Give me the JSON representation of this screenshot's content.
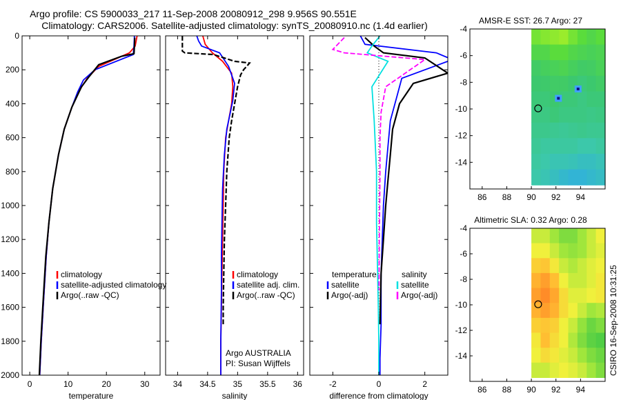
{
  "header": {
    "line1": "Argo profile: CS 5900033_217 11-Sep-2008 20080912_298 9.956S 90.551E",
    "line2": "Climatology: CARS2006. Satellite-adjusted climatology: synTS_20080910.nc (1.4d earlier)"
  },
  "side_label": "CSIRO 16-Sep-2008 10:31:25",
  "colors": {
    "red": "#ff0000",
    "blue": "#0000ff",
    "black": "#000000",
    "cyan": "#00e0e0",
    "magenta": "#ff00ff"
  },
  "chart_data": [
    {
      "id": "temperature",
      "type": "line",
      "xlabel": "temperature",
      "ylabel": "",
      "xlim": [
        -2,
        34
      ],
      "ylim": [
        2000,
        0
      ],
      "xticks": [
        0,
        10,
        20,
        30
      ],
      "yticks": [
        0,
        200,
        400,
        600,
        800,
        1000,
        1200,
        1400,
        1600,
        1800,
        2000
      ],
      "legend": [
        "climatology",
        "satellite-adjusted climatology",
        "Argo(..raw -QC)"
      ],
      "series": [
        {
          "name": "climatology",
          "color": "red",
          "x": [
            28,
            27.5,
            26,
            23,
            18,
            15,
            13,
            11,
            9,
            7.5,
            6,
            5,
            4.3,
            3.5,
            3,
            2.6
          ],
          "y": [
            0,
            60,
            100,
            130,
            180,
            250,
            320,
            420,
            550,
            700,
            900,
            1100,
            1300,
            1600,
            1800,
            2000
          ]
        },
        {
          "name": "satellite-adjusted climatology",
          "color": "blue",
          "x": [
            27.3,
            27.2,
            27,
            17,
            14,
            12.5,
            11,
            9,
            7.5,
            6,
            5,
            4.3,
            3.5,
            3,
            2.6
          ],
          "y": [
            0,
            60,
            110,
            200,
            260,
            330,
            420,
            550,
            700,
            900,
            1100,
            1300,
            1600,
            1800,
            2000
          ]
        },
        {
          "name": "Argo(..raw -QC)",
          "color": "black",
          "x": [
            27.4,
            27.3,
            27.2,
            24,
            18,
            15.5,
            13.5,
            11,
            9,
            7.5,
            6,
            5,
            4.2,
            3.4,
            2.9,
            2.5
          ],
          "y": [
            10,
            60,
            105,
            120,
            170,
            240,
            300,
            420,
            550,
            700,
            900,
            1100,
            1300,
            1600,
            1800,
            2000
          ]
        }
      ]
    },
    {
      "id": "salinity",
      "type": "line",
      "xlabel": "salinity",
      "ylabel": "",
      "xlim": [
        33.8,
        36.1
      ],
      "ylim": [
        2000,
        0
      ],
      "xticks": [
        34,
        34.5,
        35,
        35.5,
        36
      ],
      "legend": [
        "climatology",
        "satellite adj. clim.",
        "Argo(..raw -QC)"
      ],
      "annotation": [
        "Argo AUSTRALIA",
        "PI: Susan Wijffels"
      ],
      "series": [
        {
          "name": "climatology",
          "color": "red",
          "x": [
            34.42,
            34.46,
            34.58,
            34.75,
            34.9,
            34.92,
            34.9,
            34.85,
            34.8,
            34.77,
            34.76,
            34.75,
            34.74,
            34.73,
            34.72,
            34.72
          ],
          "y": [
            0,
            50,
            100,
            150,
            220,
            300,
            400,
            500,
            600,
            800,
            1000,
            1200,
            1400,
            1600,
            1800,
            2000
          ]
        },
        {
          "name": "satellite adj. clim.",
          "color": "blue",
          "x": [
            34.32,
            34.35,
            34.4,
            34.55,
            34.7,
            34.85,
            34.95,
            34.92,
            34.88,
            34.82,
            34.78,
            34.75,
            34.74,
            34.73,
            34.73,
            34.72,
            34.72
          ],
          "y": [
            0,
            30,
            60,
            80,
            100,
            180,
            280,
            380,
            450,
            550,
            700,
            900,
            1100,
            1300,
            1500,
            1800,
            2000
          ]
        },
        {
          "name": "Argo(..raw -QC)",
          "color": "black",
          "x": [
            34.08,
            34.08,
            34.12,
            34.6,
            34.95,
            35.2,
            35.1,
            35.05,
            35.0,
            34.95,
            34.9,
            34.86,
            34.82,
            34.8,
            34.78,
            34.77,
            34.76,
            34.76
          ],
          "y": [
            0,
            90,
            100,
            110,
            150,
            160,
            200,
            230,
            300,
            400,
            500,
            600,
            800,
            1000,
            1200,
            1400,
            1600,
            1700
          ]
        }
      ]
    },
    {
      "id": "difference",
      "type": "line",
      "xlabel": "difference from climatology",
      "ylabel": "",
      "xlim": [
        -3,
        3
      ],
      "ylim": [
        2000,
        0
      ],
      "xticks": [
        -2,
        0,
        2
      ],
      "legend_left_title": "temperature",
      "legend_right_title": "salinity",
      "legend": [
        "satellite",
        "Argo(-adj)",
        "satellite",
        "Argo(-adj)"
      ],
      "series": [
        {
          "name": "temperature satellite",
          "color": "blue",
          "x": [
            -0.8,
            -0.6,
            2.5,
            3.2,
            1.0,
            0.8,
            0.5,
            0.4,
            0.3,
            0.2,
            0.15,
            0.1,
            0.1,
            0.1,
            0.05,
            0.05
          ],
          "y": [
            0,
            50,
            100,
            140,
            250,
            350,
            500,
            650,
            800,
            1000,
            1200,
            1400,
            1600,
            1700,
            1900,
            2000
          ]
        },
        {
          "name": "temperature Argo(-adj)",
          "color": "black",
          "x": [
            -0.6,
            -0.2,
            0.2,
            2.0,
            3.0,
            1.5,
            0.9,
            0.6,
            0.5,
            0.4,
            0.3,
            0.2,
            0.1,
            0.05
          ],
          "y": [
            10,
            60,
            100,
            130,
            220,
            280,
            400,
            550,
            700,
            850,
            1000,
            1200,
            1400,
            1700
          ]
        },
        {
          "name": "salinity satellite",
          "color": "cyan",
          "x": [
            0.05,
            -0.3,
            -0.5,
            0.4,
            -0.3,
            -0.2,
            -0.1,
            -0.1,
            -0.05,
            -0.02,
            0,
            0
          ],
          "y": [
            0,
            60,
            100,
            150,
            300,
            500,
            800,
            1100,
            1400,
            1600,
            1800,
            2000
          ]
        },
        {
          "name": "salinity Argo(-adj)",
          "color": "magenta",
          "x": [
            -1.5,
            -2.0,
            -1.5,
            2.0,
            0.3,
            0.1,
            0.05,
            0.05,
            0.04,
            0.02,
            0.01
          ],
          "y": [
            10,
            80,
            100,
            140,
            300,
            450,
            600,
            800,
            1000,
            1200,
            1500
          ]
        }
      ]
    },
    {
      "id": "sst_map",
      "type": "heatmap",
      "title": "AMSR-E SST: 26.7 Argo: 27",
      "xlim": [
        85,
        96
      ],
      "ylim": [
        -16,
        -4
      ],
      "xticks": [
        86,
        88,
        90,
        92,
        94
      ],
      "yticks": [
        -4,
        -6,
        -8,
        -10,
        -12,
        -14
      ],
      "data_extent_x": [
        90,
        96
      ],
      "data_extent_y": [
        -15.7,
        -4
      ],
      "argo_position": [
        90.551,
        -9.956
      ],
      "hot_pixels": [
        [
          92.2,
          -9.2
        ],
        [
          93.8,
          -8.5
        ]
      ],
      "value_rows": [
        [
          0.55,
          0.58,
          0.6,
          0.62,
          0.55,
          0.5,
          0.45,
          0.5
        ],
        [
          0.45,
          0.45,
          0.5,
          0.5,
          0.45,
          0.42,
          0.4,
          0.42
        ],
        [
          0.35,
          0.38,
          0.4,
          0.42,
          0.38,
          0.35,
          0.36,
          0.4
        ],
        [
          0.32,
          0.33,
          0.35,
          0.35,
          0.32,
          0.3,
          0.32,
          0.35
        ],
        [
          0.3,
          0.3,
          0.32,
          0.3,
          0.3,
          0.28,
          0.3,
          0.3
        ],
        [
          0.28,
          0.28,
          0.3,
          0.28,
          0.28,
          0.28,
          0.27,
          0.28
        ],
        [
          0.26,
          0.26,
          0.25,
          0.24,
          0.25,
          0.26,
          0.25,
          0.25
        ],
        [
          0.24,
          0.22,
          0.22,
          0.22,
          0.22,
          0.2,
          0.2,
          0.22
        ],
        [
          0.22,
          0.2,
          0.18,
          0.18,
          0.17,
          0.15,
          0.15,
          0.17
        ],
        [
          0.2,
          0.18,
          0.15,
          0.12,
          0.1,
          0.1,
          0.12,
          0.14
        ]
      ]
    },
    {
      "id": "sla_map",
      "type": "heatmap",
      "title": "Altimetric SLA: 0.32 Argo: 0.28",
      "xlim": [
        85,
        96
      ],
      "ylim": [
        -16,
        -4
      ],
      "xticks": [
        86,
        88,
        90,
        92,
        94
      ],
      "yticks": [
        -4,
        -6,
        -8,
        -10,
        -12,
        -14
      ],
      "data_extent_x": [
        90,
        96
      ],
      "data_extent_y": [
        -15.7,
        -4
      ],
      "argo_position": [
        90.551,
        -9.956
      ],
      "value_rows": [
        [
          0.55,
          0.55,
          0.5,
          0.45,
          0.45,
          0.5,
          0.55,
          0.6
        ],
        [
          0.6,
          0.6,
          0.55,
          0.5,
          0.48,
          0.5,
          0.55,
          0.58
        ],
        [
          0.68,
          0.7,
          0.62,
          0.55,
          0.52,
          0.55,
          0.58,
          0.6
        ],
        [
          0.75,
          0.8,
          0.72,
          0.6,
          0.55,
          0.55,
          0.58,
          0.62
        ],
        [
          0.8,
          0.85,
          0.78,
          0.65,
          0.58,
          0.58,
          0.6,
          0.62
        ],
        [
          0.75,
          0.8,
          0.75,
          0.65,
          0.6,
          0.55,
          0.5,
          0.52
        ],
        [
          0.68,
          0.7,
          0.68,
          0.6,
          0.55,
          0.48,
          0.42,
          0.45
        ],
        [
          0.62,
          0.72,
          0.65,
          0.6,
          0.52,
          0.45,
          0.4,
          0.38
        ],
        [
          0.6,
          0.65,
          0.62,
          0.58,
          0.55,
          0.5,
          0.45,
          0.42
        ],
        [
          0.55,
          0.55,
          0.58,
          0.6,
          0.58,
          0.55,
          0.5,
          0.45
        ]
      ]
    }
  ]
}
